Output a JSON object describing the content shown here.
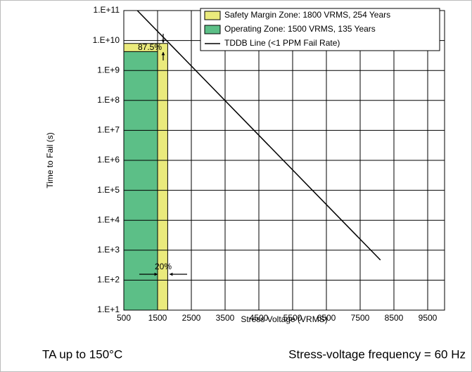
{
  "chart_data": {
    "type": "line",
    "ylabel": "Time to Fail (s)",
    "xlabel": "Stress Voltage (VRMS)",
    "xlim": [
      500,
      10000
    ],
    "xticks": [
      500,
      1500,
      2500,
      3500,
      4500,
      5500,
      6500,
      7500,
      8500,
      9500
    ],
    "ylim": [
      10,
      100000000000
    ],
    "log_y": true,
    "grid": true,
    "yticks": [
      {
        "value": 10,
        "label": "1.E+1"
      },
      {
        "value": 100,
        "label": "1.E+2"
      },
      {
        "value": 1000,
        "label": "1.E+3"
      },
      {
        "value": 10000,
        "label": "1.E+4"
      },
      {
        "value": 100000,
        "label": "1.E+5"
      },
      {
        "value": 1000000,
        "label": "1.E+6"
      },
      {
        "value": 10000000,
        "label": "1.E+7"
      },
      {
        "value": 100000000,
        "label": "1.E+8"
      },
      {
        "value": 1000000000,
        "label": "1.E+9"
      },
      {
        "value": 10000000000,
        "label": "1.E+10"
      },
      {
        "value": 100000000000,
        "label": "1.E+11"
      }
    ],
    "series": [
      {
        "name": "Safety Margin Zone: 1800 VRMS, 254 Years",
        "kind": "zone",
        "color": "#eaea7c",
        "x": [
          500,
          1800
        ],
        "values": [
          8000000000,
          8000000000
        ]
      },
      {
        "name": "Operating Zone: 1500 VRMS, 135 Years",
        "kind": "zone",
        "color": "#5cbf87",
        "x": [
          500,
          1500
        ],
        "values": [
          4260000000,
          4260000000
        ]
      },
      {
        "name": "TDDB Line (<1 PPM Fail Rate)",
        "kind": "line",
        "color": "#000000",
        "x": [
          900,
          8100
        ],
        "values": [
          100000000000,
          470
        ]
      }
    ],
    "annotations": [
      "87.5%",
      "20%"
    ],
    "footer_left": "TA up to 150°C",
    "footer_right": "Stress-voltage frequency = 60 Hz"
  }
}
